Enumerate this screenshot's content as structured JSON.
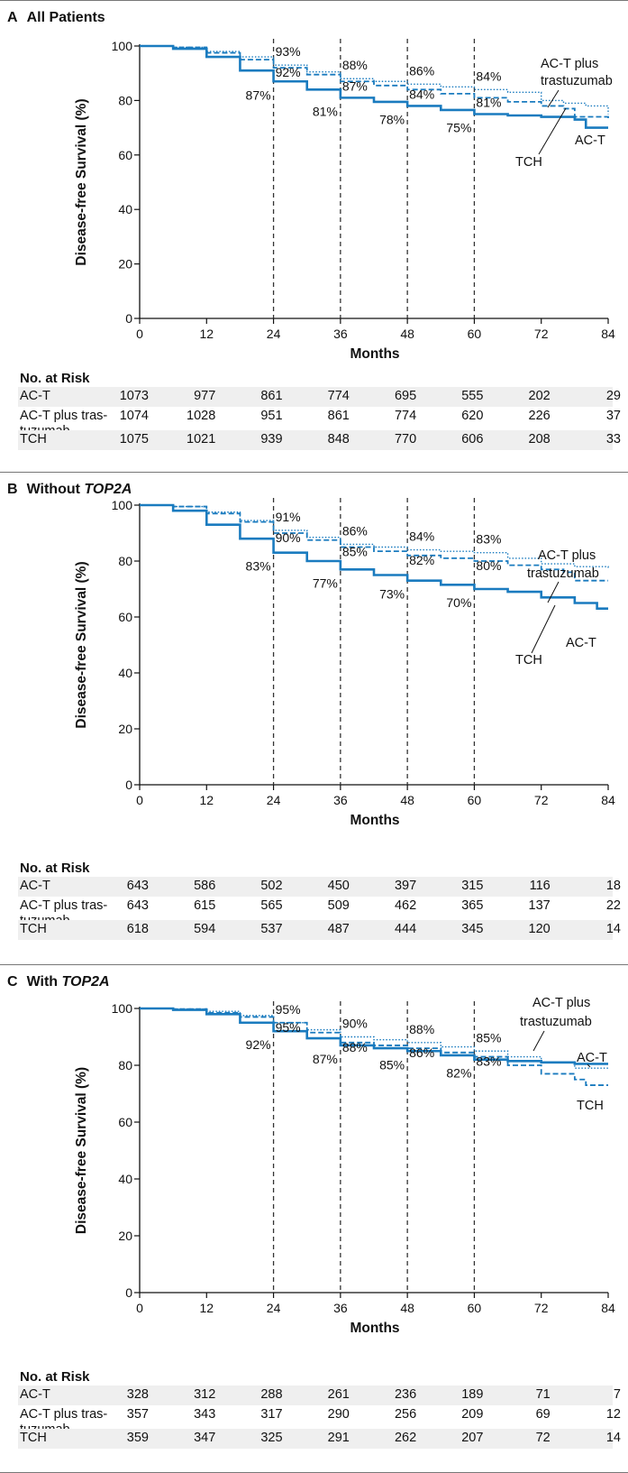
{
  "x_ticks": [
    0,
    12,
    24,
    36,
    48,
    60,
    72,
    84
  ],
  "y_ticks": [
    0,
    20,
    40,
    60,
    80,
    100
  ],
  "colors": {
    "curve": "#1a7bbf",
    "dash": "#333333"
  },
  "panels": [
    {
      "letter": "A",
      "title_pre": "All Patients",
      "title_italic": "",
      "ylabel": "Disease-free Survival (%)",
      "xlabel": "Months",
      "risk_title": "No. at Risk",
      "risk_rows": [
        {
          "label": "AC-T",
          "values": [
            "1073",
            "977",
            "861",
            "774",
            "695",
            "555",
            "202",
            "29"
          ]
        },
        {
          "label": "AC-T plus tras-\n    tuzumab",
          "values": [
            "1074",
            "1028",
            "951",
            "861",
            "774",
            "620",
            "226",
            "37"
          ]
        },
        {
          "label": "TCH",
          "values": [
            "1075",
            "1021",
            "939",
            "848",
            "770",
            "606",
            "208",
            "33"
          ]
        }
      ],
      "annotations": [
        "93%",
        "92%",
        "87%",
        "88%",
        "87%",
        "81%",
        "86%",
        "84%",
        "78%",
        "84%",
        "81%",
        "75%"
      ],
      "curve_labels": [
        "AC-T plus",
        "trastuzumab",
        "TCH",
        "AC-T"
      ]
    },
    {
      "letter": "B",
      "title_pre": "Without ",
      "title_italic": "TOP2A",
      "ylabel": "Disease-free Survival (%)",
      "xlabel": "Months",
      "risk_title": "No. at Risk",
      "risk_rows": [
        {
          "label": "AC-T",
          "values": [
            "643",
            "586",
            "502",
            "450",
            "397",
            "315",
            "116",
            "18"
          ]
        },
        {
          "label": "AC-T plus tras-\n    tuzumab",
          "values": [
            "643",
            "615",
            "565",
            "509",
            "462",
            "365",
            "137",
            "22"
          ]
        },
        {
          "label": "TCH",
          "values": [
            "618",
            "594",
            "537",
            "487",
            "444",
            "345",
            "120",
            "14"
          ]
        }
      ],
      "annotations": [
        "91%",
        "90%",
        "83%",
        "86%",
        "85%",
        "77%",
        "84%",
        "82%",
        "73%",
        "83%",
        "80%",
        "70%"
      ],
      "curve_labels": [
        "AC-T plus",
        "trastuzumab",
        "TCH",
        "AC-T"
      ]
    },
    {
      "letter": "C",
      "title_pre": "With ",
      "title_italic": "TOP2A",
      "ylabel": "Disease-free Survival (%)",
      "xlabel": "Months",
      "risk_title": "No. at Risk",
      "risk_rows": [
        {
          "label": "AC-T",
          "values": [
            "328",
            "312",
            "288",
            "261",
            "236",
            "189",
            "71",
            "7"
          ]
        },
        {
          "label": "AC-T plus tras-\n    tuzumab",
          "values": [
            "357",
            "343",
            "317",
            "290",
            "256",
            "209",
            "69",
            "12"
          ]
        },
        {
          "label": "TCH",
          "values": [
            "359",
            "347",
            "325",
            "291",
            "262",
            "207",
            "72",
            "14"
          ]
        }
      ],
      "annotations": [
        "95%",
        "95%",
        "92%",
        "90%",
        "88%",
        "87%",
        "88%",
        "86%",
        "85%",
        "85%",
        "83%",
        "82%"
      ],
      "curve_labels": [
        "AC-T plus",
        "trastuzumab",
        "AC-T",
        "TCH"
      ]
    }
  ],
  "chart_data": [
    {
      "type": "line",
      "title": "All Patients",
      "xlabel": "Months",
      "ylabel": "Disease-free Survival (%)",
      "xlim": [
        0,
        84
      ],
      "ylim": [
        0,
        100
      ],
      "reference_lines_x": [
        24,
        36,
        48,
        60
      ],
      "series": [
        {
          "name": "AC-T plus trastuzumab",
          "style": "dotted",
          "x": [
            0,
            6,
            12,
            18,
            24,
            30,
            36,
            42,
            48,
            54,
            60,
            66,
            72,
            76,
            80,
            84
          ],
          "y": [
            100,
            99.5,
            98,
            96,
            93,
            90.5,
            88,
            87,
            86,
            85,
            84,
            83,
            80,
            79,
            78,
            75
          ]
        },
        {
          "name": "TCH",
          "style": "dashed",
          "x": [
            0,
            6,
            12,
            18,
            24,
            30,
            36,
            42,
            48,
            54,
            60,
            66,
            72,
            76,
            78,
            84
          ],
          "y": [
            100,
            99.5,
            97.5,
            95,
            92,
            89.5,
            87,
            85.5,
            84,
            82.5,
            81,
            79.5,
            78,
            77,
            74,
            73
          ]
        },
        {
          "name": "AC-T",
          "style": "solid",
          "x": [
            0,
            6,
            12,
            18,
            24,
            30,
            36,
            42,
            48,
            54,
            60,
            66,
            72,
            78,
            80,
            84
          ],
          "y": [
            100,
            99,
            96,
            91,
            87,
            84,
            81,
            79.5,
            78,
            76.5,
            75,
            74.5,
            74,
            73,
            70,
            70
          ]
        }
      ]
    },
    {
      "type": "line",
      "title": "Without TOP2A",
      "xlabel": "Months",
      "ylabel": "Disease-free Survival (%)",
      "xlim": [
        0,
        84
      ],
      "ylim": [
        0,
        100
      ],
      "reference_lines_x": [
        24,
        36,
        48,
        60
      ],
      "series": [
        {
          "name": "AC-T plus trastuzumab",
          "style": "dotted",
          "x": [
            0,
            6,
            12,
            18,
            24,
            30,
            36,
            42,
            48,
            54,
            60,
            66,
            72,
            78,
            84
          ],
          "y": [
            100,
            99.5,
            97.5,
            94.5,
            91,
            88.5,
            86,
            85,
            84,
            83.5,
            83,
            81,
            79,
            78,
            77
          ]
        },
        {
          "name": "TCH",
          "style": "dashed",
          "x": [
            0,
            6,
            12,
            18,
            24,
            30,
            36,
            42,
            48,
            54,
            60,
            66,
            72,
            76,
            78,
            84
          ],
          "y": [
            100,
            99.5,
            97,
            94,
            90,
            87.5,
            85,
            83.5,
            82,
            81,
            80,
            78.5,
            77,
            76,
            73,
            73
          ]
        },
        {
          "name": "AC-T",
          "style": "solid",
          "x": [
            0,
            6,
            12,
            18,
            24,
            30,
            36,
            42,
            48,
            54,
            60,
            66,
            72,
            78,
            82,
            84
          ],
          "y": [
            100,
            98,
            93,
            88,
            83,
            80,
            77,
            75,
            73,
            71.5,
            70,
            69,
            67,
            65,
            63,
            63
          ]
        }
      ]
    },
    {
      "type": "line",
      "title": "With TOP2A",
      "xlabel": "Months",
      "ylabel": "Disease-free Survival (%)",
      "xlim": [
        0,
        84
      ],
      "ylim": [
        0,
        100
      ],
      "reference_lines_x": [
        24,
        36,
        48,
        60
      ],
      "series": [
        {
          "name": "AC-T plus trastuzumab",
          "style": "dotted",
          "x": [
            0,
            6,
            12,
            18,
            24,
            30,
            36,
            42,
            48,
            54,
            60,
            66,
            72,
            78,
            84
          ],
          "y": [
            100,
            99.8,
            99,
            97.5,
            95,
            92.5,
            90,
            89,
            88,
            86.5,
            85,
            83,
            81,
            79,
            79
          ]
        },
        {
          "name": "TCH",
          "style": "dashed",
          "x": [
            0,
            6,
            12,
            18,
            24,
            30,
            36,
            42,
            48,
            54,
            60,
            66,
            72,
            78,
            80,
            84
          ],
          "y": [
            100,
            99.8,
            98.5,
            97,
            95,
            91.5,
            88,
            87,
            86,
            84.5,
            83,
            80,
            77,
            75,
            73,
            73
          ]
        },
        {
          "name": "AC-T",
          "style": "solid",
          "x": [
            0,
            6,
            12,
            18,
            24,
            30,
            36,
            42,
            48,
            54,
            60,
            66,
            72,
            78,
            84
          ],
          "y": [
            100,
            99.5,
            98,
            95,
            92,
            89.5,
            87,
            86,
            85,
            83.5,
            82,
            81.5,
            81,
            80.5,
            80.5
          ]
        }
      ]
    }
  ]
}
